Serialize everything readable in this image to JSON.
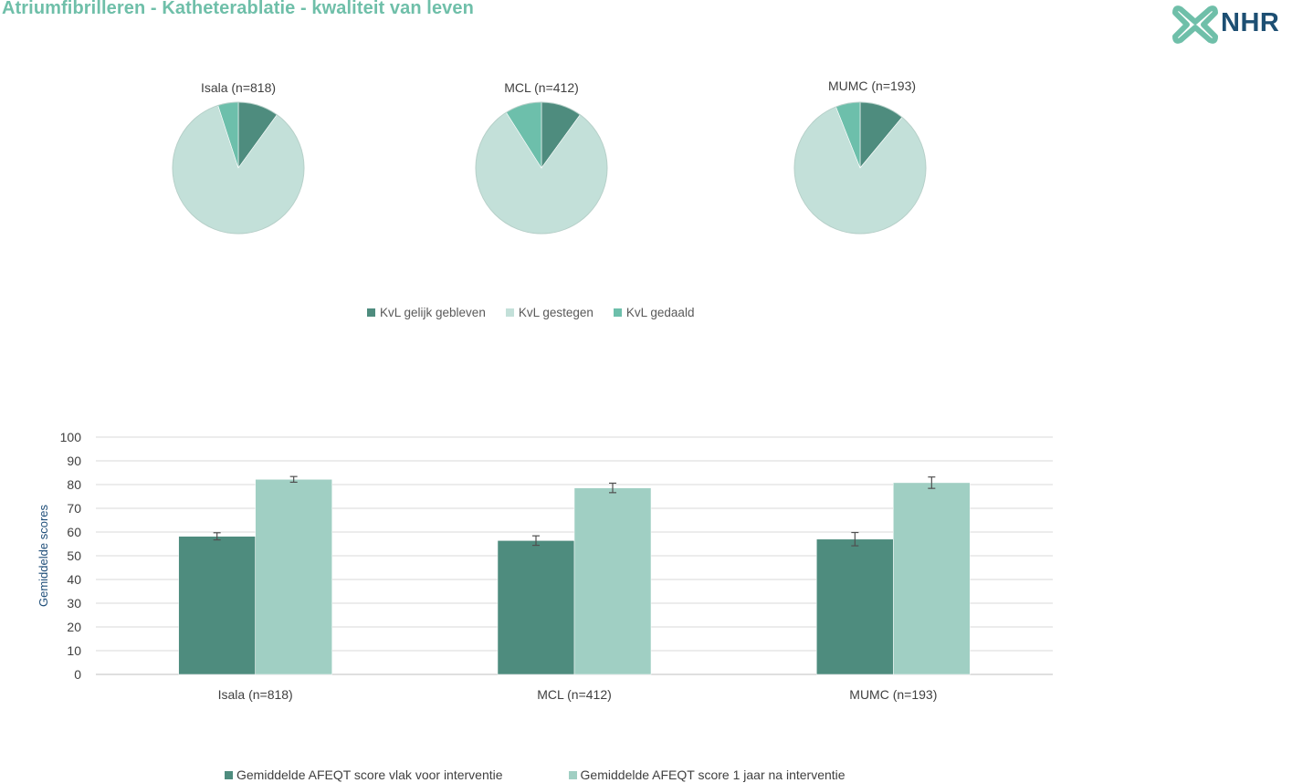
{
  "page_title": "Atriumfibrilleren - Katheterablatie - kwaliteit van leven",
  "logo": {
    "text": "NHR",
    "icon": "nhr-cross-icon"
  },
  "colors": {
    "title": "#6fbfa9",
    "dark_teal": "#4e8c7e",
    "light_teal": "#c3e0d9",
    "mid_teal": "#6dbfab",
    "bar_after": "#a0cfc3",
    "logo_navy": "#1d4f73"
  },
  "chart_data": [
    {
      "type": "pie",
      "title": "Isala (n=818)",
      "labels": [
        "KvL gelijk gebleven",
        "KvL gestegen",
        "KvL gedaald"
      ],
      "values": [
        0.1,
        0.85,
        0.05
      ]
    },
    {
      "type": "pie",
      "title": "MCL (n=412)",
      "labels": [
        "KvL gelijk gebleven",
        "KvL gestegen",
        "KvL gedaald"
      ],
      "values": [
        0.1,
        0.81,
        0.09
      ]
    },
    {
      "type": "pie",
      "title": "MUMC (n=193)",
      "labels": [
        "KvL gelijk gebleven",
        "KvL gestegen",
        "KvL gedaald"
      ],
      "values": [
        0.11,
        0.83,
        0.06
      ]
    },
    {
      "type": "bar",
      "categories": [
        "Isala (n=818)",
        "MCL (n=412)",
        "MUMC (n=193)"
      ],
      "series": [
        {
          "name": "Gemiddelde AFEQT score vlak voor interventie",
          "values": [
            58.2,
            56.4,
            57.0
          ],
          "error": [
            1.5,
            2.0,
            2.8
          ]
        },
        {
          "name": "Gemiddelde AFEQT score 1 jaar na interventie",
          "values": [
            82.2,
            78.6,
            80.8
          ],
          "error": [
            1.2,
            2.0,
            2.4
          ]
        }
      ],
      "ylabel": "Gemiddelde scores",
      "ylim": [
        0,
        100
      ],
      "yticks": [
        0,
        10,
        20,
        30,
        40,
        50,
        60,
        70,
        80,
        90,
        100
      ],
      "grid": true,
      "legend": "bottom"
    }
  ],
  "pie_legend": [
    "KvL gelijk gebleven",
    "KvL gestegen",
    "KvL gedaald"
  ]
}
